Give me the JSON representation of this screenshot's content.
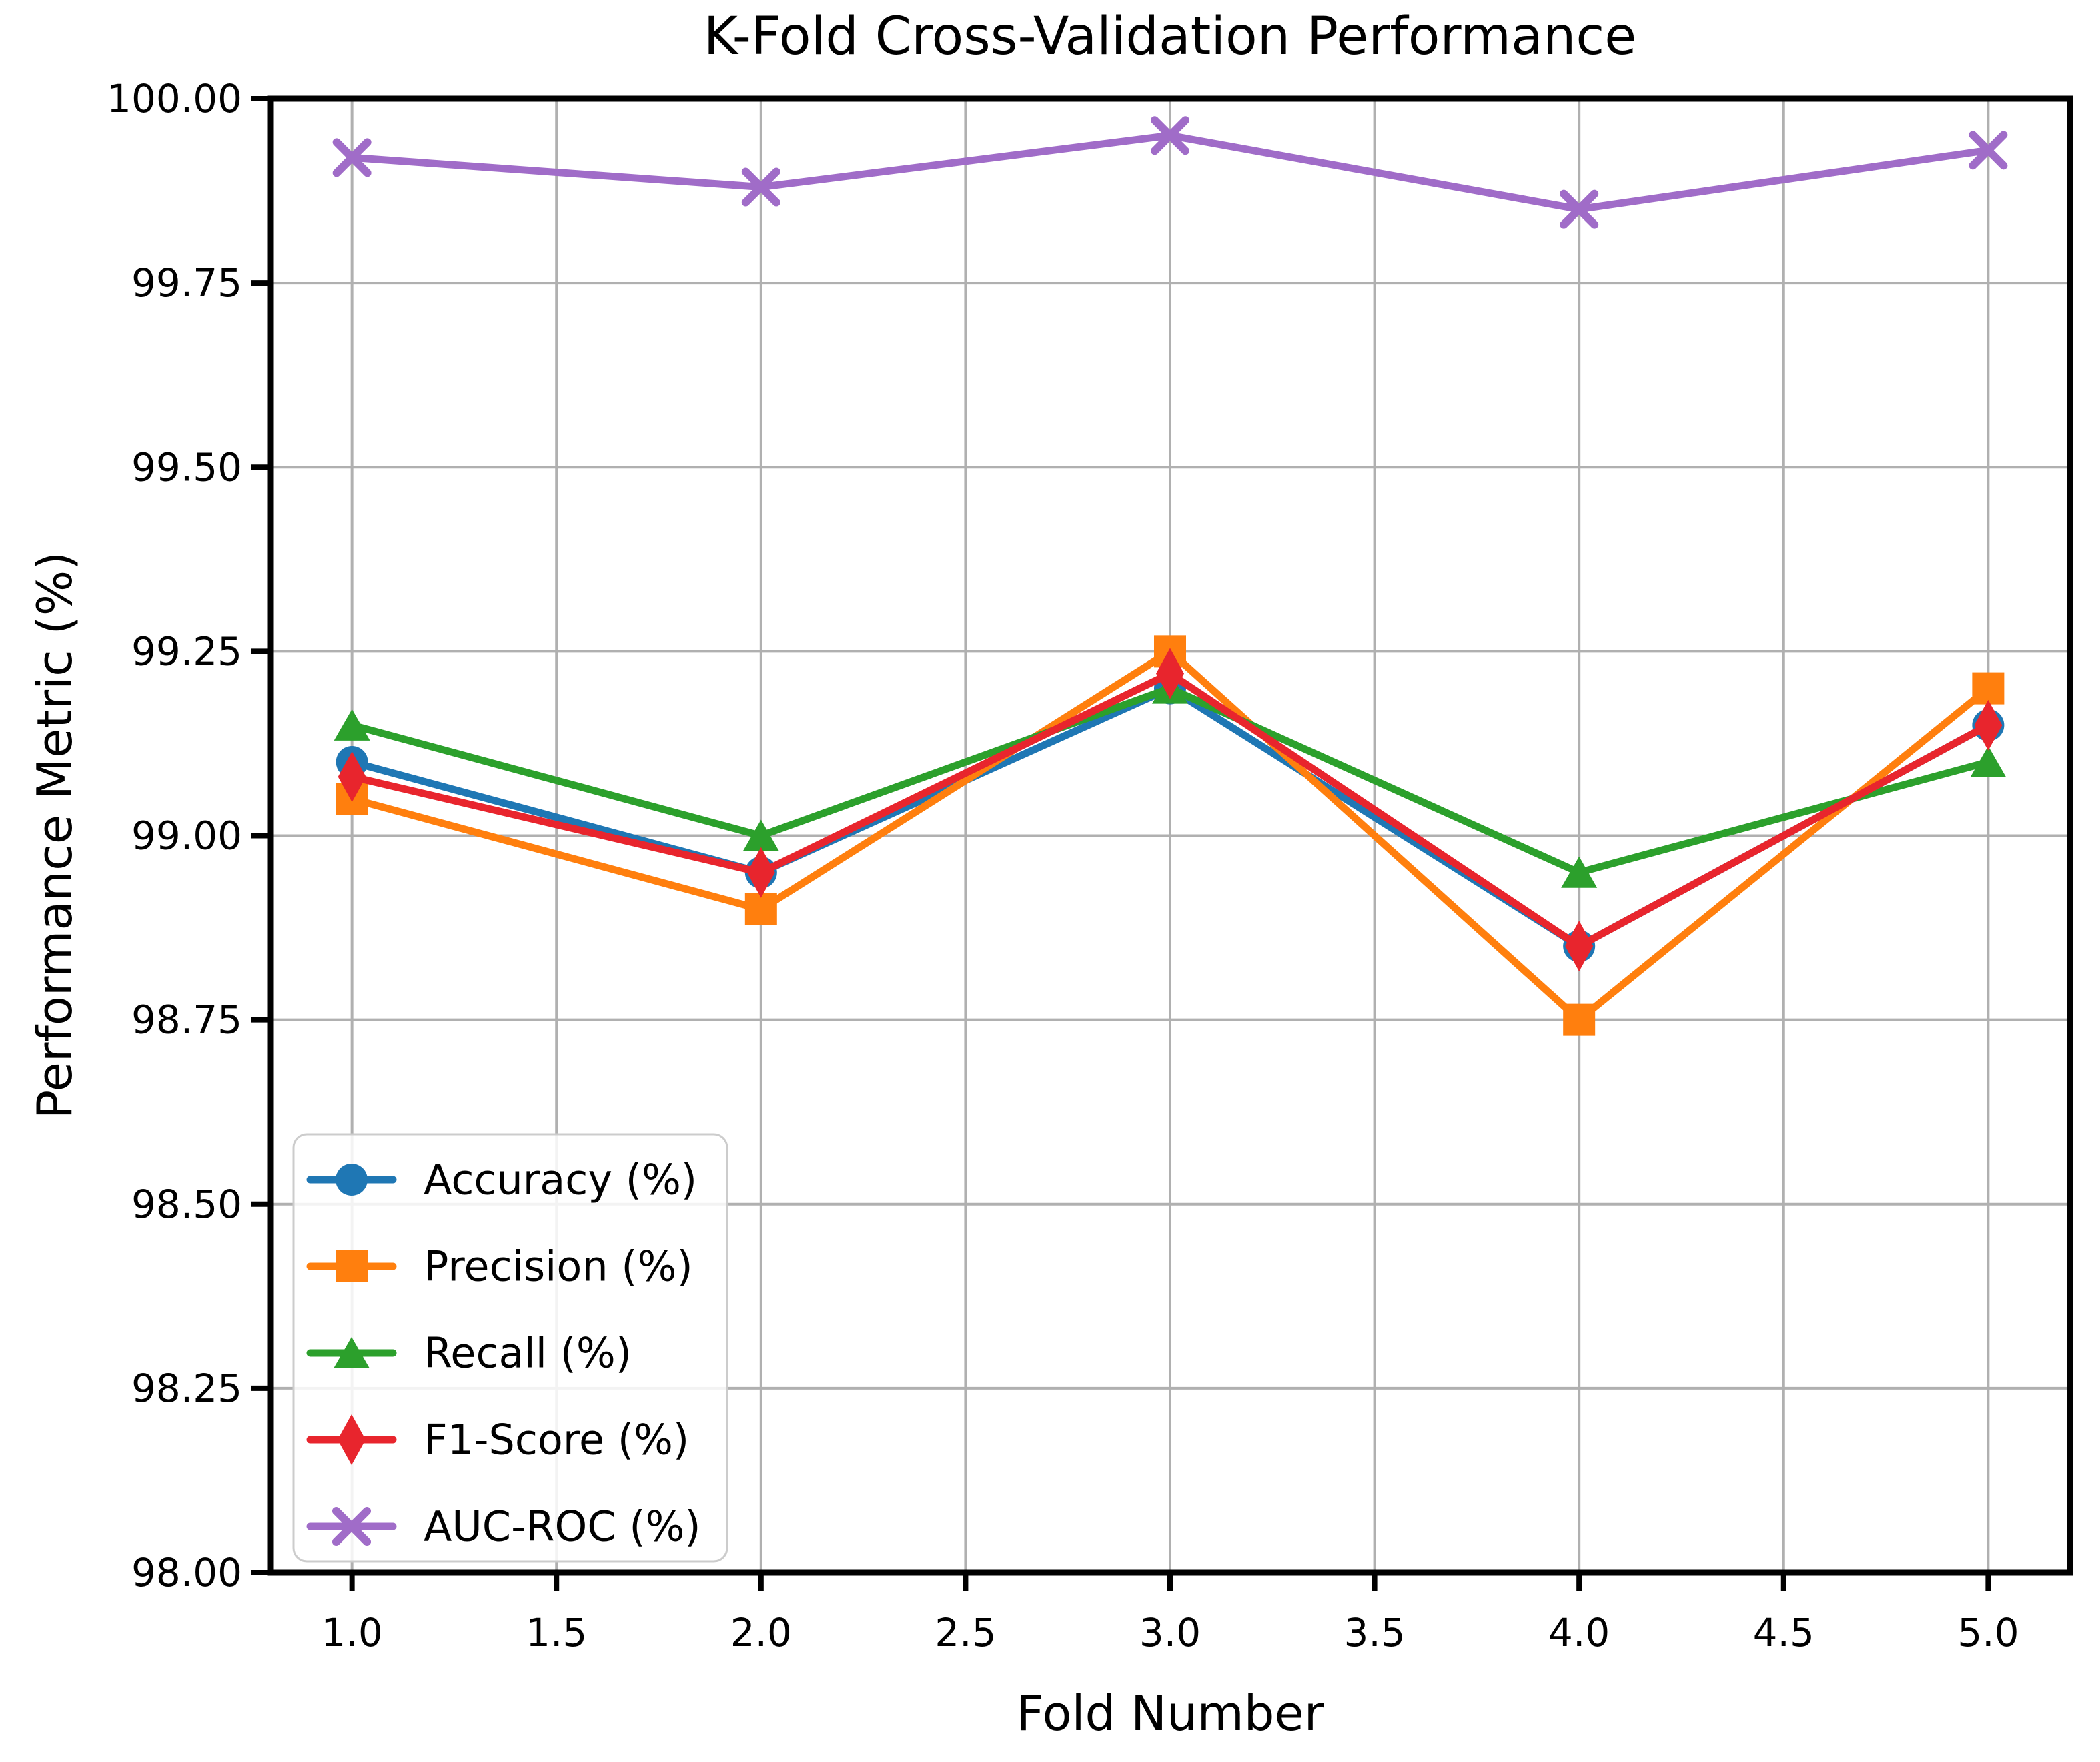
{
  "chart_data": {
    "type": "line",
    "title": "K-Fold Cross-Validation Performance",
    "xlabel": "Fold Number",
    "ylabel": "Performance Metric (%)",
    "x": [
      1.0,
      2.0,
      3.0,
      4.0,
      5.0
    ],
    "xlim": [
      0.8,
      5.2
    ],
    "ylim": [
      98.0,
      100.0
    ],
    "grid": true,
    "legend_position": "lower left",
    "xticks": [
      {
        "v": 1.0,
        "label": "1.0"
      },
      {
        "v": 1.5,
        "label": "1.5"
      },
      {
        "v": 2.0,
        "label": "2.0"
      },
      {
        "v": 2.5,
        "label": "2.5"
      },
      {
        "v": 3.0,
        "label": "3.0"
      },
      {
        "v": 3.5,
        "label": "3.5"
      },
      {
        "v": 4.0,
        "label": "4.0"
      },
      {
        "v": 4.5,
        "label": "4.5"
      },
      {
        "v": 5.0,
        "label": "5.0"
      }
    ],
    "yticks": [
      {
        "v": 98.0,
        "label": "98.00"
      },
      {
        "v": 98.25,
        "label": "98.25"
      },
      {
        "v": 98.5,
        "label": "98.50"
      },
      {
        "v": 98.75,
        "label": "98.75"
      },
      {
        "v": 99.0,
        "label": "99.00"
      },
      {
        "v": 99.25,
        "label": "99.25"
      },
      {
        "v": 99.5,
        "label": "99.50"
      },
      {
        "v": 99.75,
        "label": "99.75"
      },
      {
        "v": 100.0,
        "label": "100.00"
      }
    ],
    "series": [
      {
        "name": "Accuracy (%)",
        "color": "#1f77b4",
        "marker": "circle",
        "values": [
          99.1,
          98.95,
          99.2,
          98.85,
          99.15
        ]
      },
      {
        "name": "Precision (%)",
        "color": "#ff7f0e",
        "marker": "square",
        "values": [
          99.05,
          98.9,
          99.25,
          98.75,
          99.2
        ]
      },
      {
        "name": "Recall (%)",
        "color": "#2ca02c",
        "marker": "triangle-up",
        "values": [
          99.15,
          99.0,
          99.2,
          98.95,
          99.1
        ]
      },
      {
        "name": "F1-Score (%)",
        "color": "#e8252d",
        "marker": "thin-diamond",
        "values": [
          99.08,
          98.95,
          99.22,
          98.85,
          99.15
        ]
      },
      {
        "name": "AUC-ROC (%)",
        "color": "#a06cc8",
        "marker": "x",
        "values": [
          99.92,
          99.88,
          99.95,
          99.85,
          99.93
        ]
      }
    ],
    "colors": {
      "grid": "#b0b0b0",
      "spine": "#000000",
      "legend_border": "#cccccc",
      "background": "#ffffff"
    }
  }
}
